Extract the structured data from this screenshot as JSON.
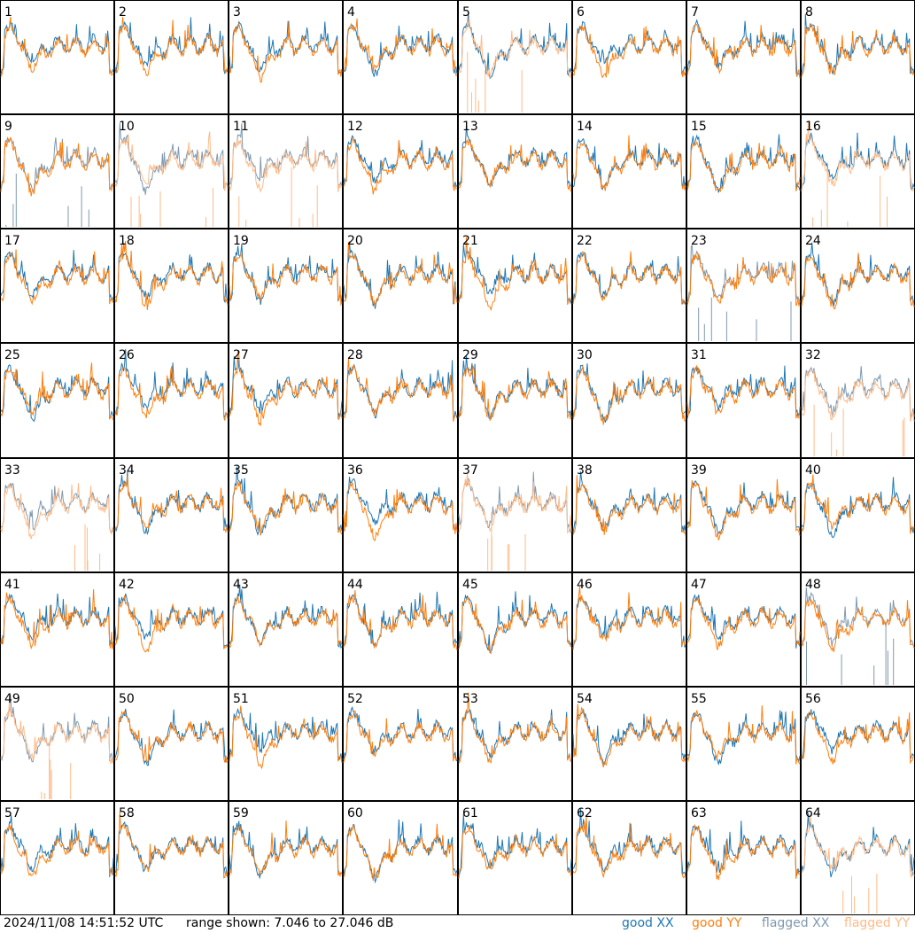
{
  "chart_data": {
    "type": "line",
    "title": "",
    "panel_count": 64,
    "panels": [
      "1",
      "2",
      "3",
      "4",
      "5",
      "6",
      "7",
      "8",
      "9",
      "10",
      "11",
      "12",
      "13",
      "14",
      "15",
      "16",
      "17",
      "18",
      "19",
      "20",
      "21",
      "22",
      "23",
      "24",
      "25",
      "26",
      "27",
      "28",
      "29",
      "30",
      "31",
      "32",
      "33",
      "34",
      "35",
      "36",
      "37",
      "38",
      "39",
      "40",
      "41",
      "42",
      "43",
      "44",
      "45",
      "46",
      "47",
      "48",
      "49",
      "50",
      "51",
      "52",
      "53",
      "54",
      "55",
      "56",
      "57",
      "58",
      "59",
      "60",
      "61",
      "62",
      "63",
      "64"
    ],
    "series": [
      {
        "name": "good XX",
        "color": "#1f77b4"
      },
      {
        "name": "good YY",
        "color": "#ff7f0e"
      },
      {
        "name": "flagged XX",
        "color": "#7f99b0"
      },
      {
        "name": "flagged YY",
        "color": "#ffbb88"
      }
    ],
    "flagged": {
      "xx": [
        "9",
        "23",
        "48",
        "49",
        "33",
        "37",
        "32",
        "10",
        "11"
      ],
      "yy": [
        "5",
        "10",
        "11",
        "16",
        "32",
        "33",
        "37",
        "49",
        "64"
      ]
    },
    "range_db": [
      7.046,
      27.046
    ],
    "legend_position": "bottom-right"
  },
  "footer": {
    "timestamp": "2024/11/08 14:51:52 UTC",
    "range_text": "range shown: 7.046 to 27.046 dB",
    "legend": {
      "good_xx": "good XX",
      "good_yy": "good YY",
      "flagged_xx": "flagged XX",
      "flagged_yy": "flagged YY"
    }
  }
}
